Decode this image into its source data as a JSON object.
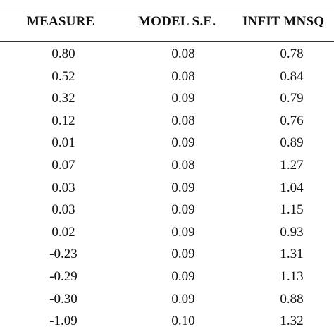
{
  "table": {
    "headers": {
      "measure": "MEASURE",
      "model_se": "MODEL S.E.",
      "infit": "INFIT  MNSQ"
    },
    "rows": [
      {
        "measure": "0.80",
        "model_se": "0.08",
        "infit": "0.78"
      },
      {
        "measure": "0.52",
        "model_se": "0.08",
        "infit": "0.84"
      },
      {
        "measure": "0.32",
        "model_se": "0.09",
        "infit": "0.79"
      },
      {
        "measure": "0.12",
        "model_se": "0.08",
        "infit": "0.76"
      },
      {
        "measure": "0.01",
        "model_se": "0.09",
        "infit": "0.89"
      },
      {
        "measure": "0.07",
        "model_se": "0.08",
        "infit": "1.27"
      },
      {
        "measure": "0.03",
        "model_se": "0.09",
        "infit": "1.04"
      },
      {
        "measure": "0.03",
        "model_se": "0.09",
        "infit": "1.15"
      },
      {
        "measure": "0.02",
        "model_se": "0.09",
        "infit": "0.93"
      },
      {
        "measure": "-0.23",
        "model_se": "0.09",
        "infit": "1.31"
      },
      {
        "measure": "-0.29",
        "model_se": "0.09",
        "infit": "1.13"
      },
      {
        "measure": "-0.30",
        "model_se": "0.09",
        "infit": "0.88"
      },
      {
        "measure": "-1.09",
        "model_se": "0.10",
        "infit": "1.32"
      }
    ]
  }
}
